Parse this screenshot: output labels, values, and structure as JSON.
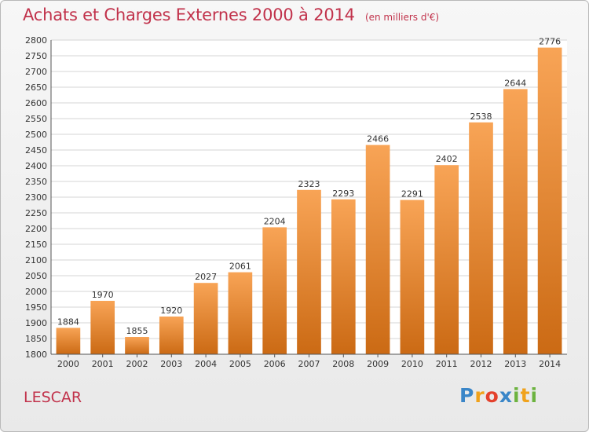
{
  "header": {
    "title": "Achats et Charges Externes 2000 à 2014",
    "subtitle": "(en milliers d'€)"
  },
  "footer": {
    "city": "LESCAR",
    "brand": {
      "text": "Proxiti",
      "letters": [
        {
          "ch": "P",
          "color": "#3a86c8"
        },
        {
          "ch": "r",
          "color": "#f0a21c"
        },
        {
          "ch": "o",
          "color": "#e4412c"
        },
        {
          "ch": "x",
          "color": "#3a86c8"
        },
        {
          "ch": "i",
          "color": "#6cb33f"
        },
        {
          "ch": "t",
          "color": "#f0a21c"
        },
        {
          "ch": "i",
          "color": "#6cb33f"
        }
      ]
    }
  },
  "colors": {
    "title": "#c1324b",
    "bar_light": "#f8a456",
    "bar_dark": "#cb6a14",
    "grid": "#d4d4d4",
    "text": "#333333"
  },
  "chart_data": {
    "type": "bar",
    "title": "Achats et Charges Externes 2000 à 2014",
    "subtitle": "(en milliers d'€)",
    "categories": [
      "2000",
      "2001",
      "2002",
      "2003",
      "2004",
      "2005",
      "2006",
      "2007",
      "2008",
      "2009",
      "2010",
      "2011",
      "2012",
      "2013",
      "2014"
    ],
    "values": [
      1884,
      1970,
      1855,
      1920,
      2027,
      2061,
      2204,
      2323,
      2293,
      2466,
      2291,
      2402,
      2538,
      2644,
      2776
    ],
    "xlabel": "",
    "ylabel": "",
    "ylim": [
      1800,
      2800
    ],
    "yticks": [
      1800,
      1850,
      1900,
      1950,
      2000,
      2050,
      2100,
      2150,
      2200,
      2250,
      2300,
      2350,
      2400,
      2450,
      2500,
      2550,
      2600,
      2650,
      2700,
      2750,
      2800
    ],
    "grid": true,
    "data_labels": true
  }
}
